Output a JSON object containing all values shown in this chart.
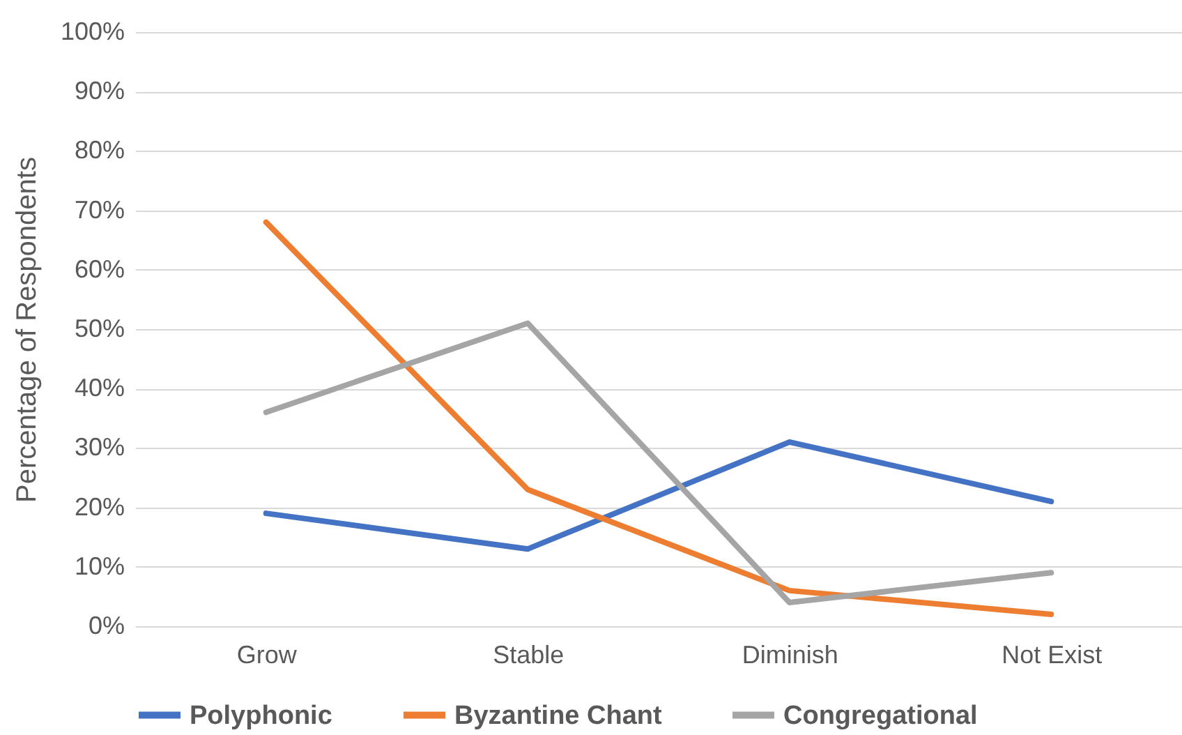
{
  "chart_data": {
    "type": "line",
    "ylabel": "Percentage of Respondents",
    "categories": [
      "Grow",
      "Stable",
      "Diminish",
      "Not Exist"
    ],
    "series": [
      {
        "name": "Polyphonic",
        "color": "#4472c4",
        "values": [
          19,
          13,
          31,
          21
        ]
      },
      {
        "name": "Byzantine Chant",
        "color": "#ed7d31",
        "values": [
          68,
          23,
          6,
          2
        ]
      },
      {
        "name": "Congregational",
        "color": "#a5a5a5",
        "values": [
          36,
          51,
          4,
          9
        ]
      }
    ],
    "ylim": [
      0,
      100
    ],
    "yticks": [
      {
        "value": 0,
        "label": "0%"
      },
      {
        "value": 10,
        "label": "10%"
      },
      {
        "value": 20,
        "label": "20%"
      },
      {
        "value": 30,
        "label": "30%"
      },
      {
        "value": 40,
        "label": "40%"
      },
      {
        "value": 50,
        "label": "50%"
      },
      {
        "value": 60,
        "label": "60%"
      },
      {
        "value": 70,
        "label": "70%"
      },
      {
        "value": 80,
        "label": "80%"
      },
      {
        "value": 90,
        "label": "90%"
      },
      {
        "value": 100,
        "label": "100%"
      }
    ],
    "grid": "y",
    "legend": "bottom",
    "marker": "none",
    "line_style": "solid"
  }
}
